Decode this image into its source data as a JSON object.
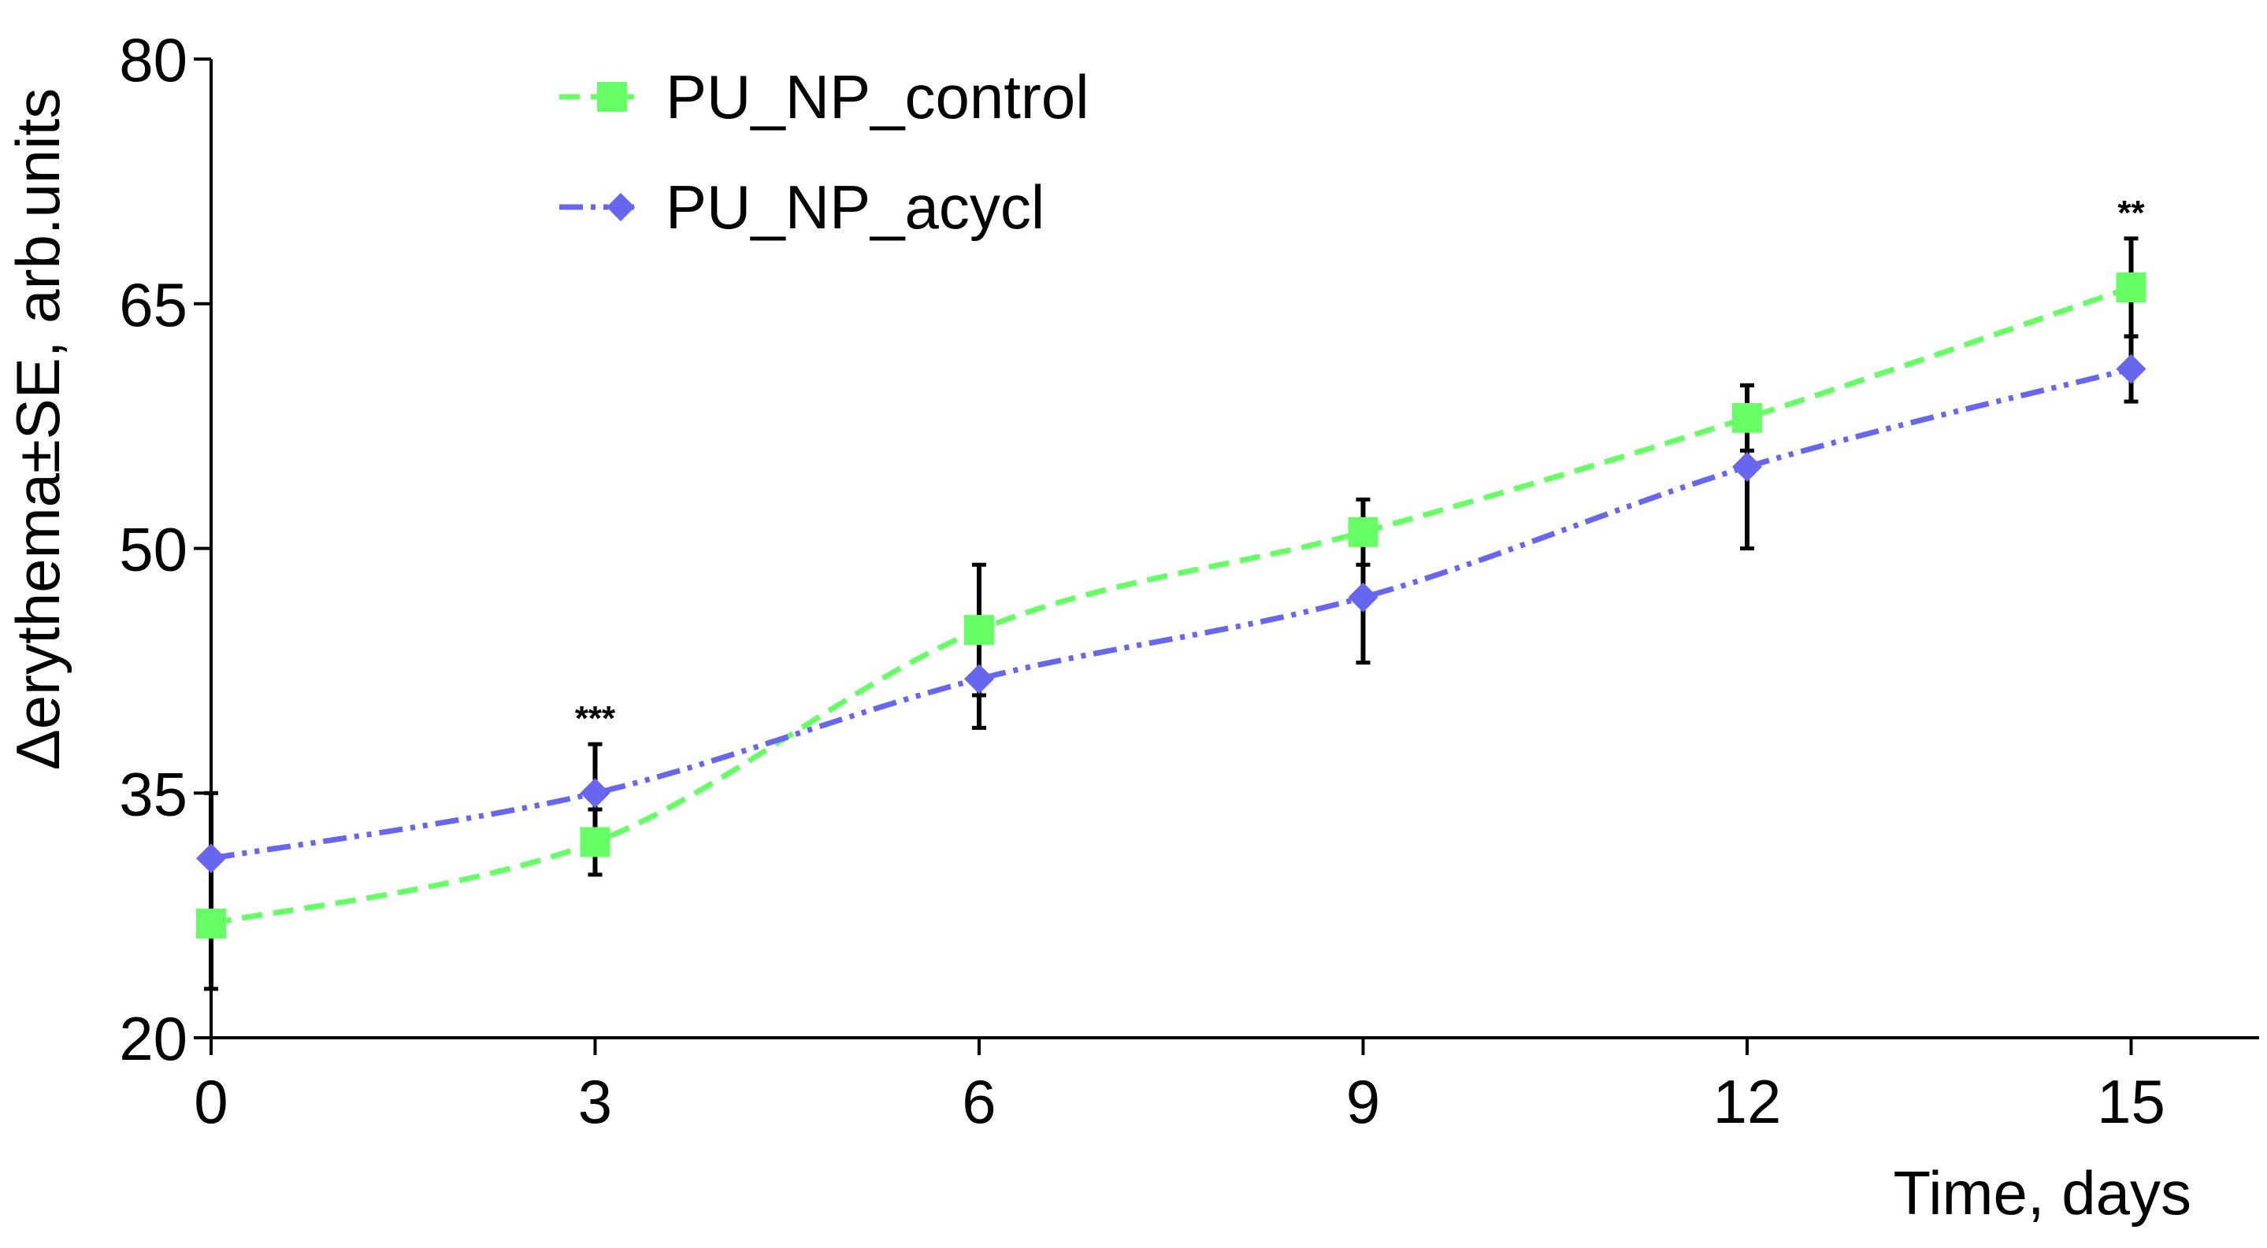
{
  "chart_data": {
    "type": "line",
    "title": "",
    "xlabel": "Time, days",
    "ylabel": "Δerythema±SE, arb.units",
    "x": [
      0,
      3,
      6,
      9,
      12,
      15
    ],
    "xlim": [
      0,
      16
    ],
    "ylim": [
      20,
      80
    ],
    "xticks": [
      0,
      3,
      6,
      9,
      12,
      15
    ],
    "yticks": [
      20,
      35,
      50,
      65,
      80
    ],
    "grid": false,
    "legend_position": "top-left",
    "series": [
      {
        "name": "PU_NP_control",
        "color": "#66ff66",
        "line_style": "dashed",
        "marker": "square",
        "values": [
          27,
          32,
          45,
          51,
          58,
          66
        ],
        "error": [
          4,
          2,
          4,
          2,
          2,
          3
        ]
      },
      {
        "name": "PU_NP_acycl",
        "color": "#6666ee",
        "line_style": "dash-dot-dot",
        "marker": "diamond",
        "values": [
          31,
          35,
          42,
          47,
          55,
          61
        ],
        "error": [
          4,
          3,
          3,
          4,
          5,
          2
        ]
      }
    ],
    "annotations": [
      {
        "x": 3,
        "text": "***"
      },
      {
        "x": 15,
        "text": "**"
      }
    ]
  }
}
